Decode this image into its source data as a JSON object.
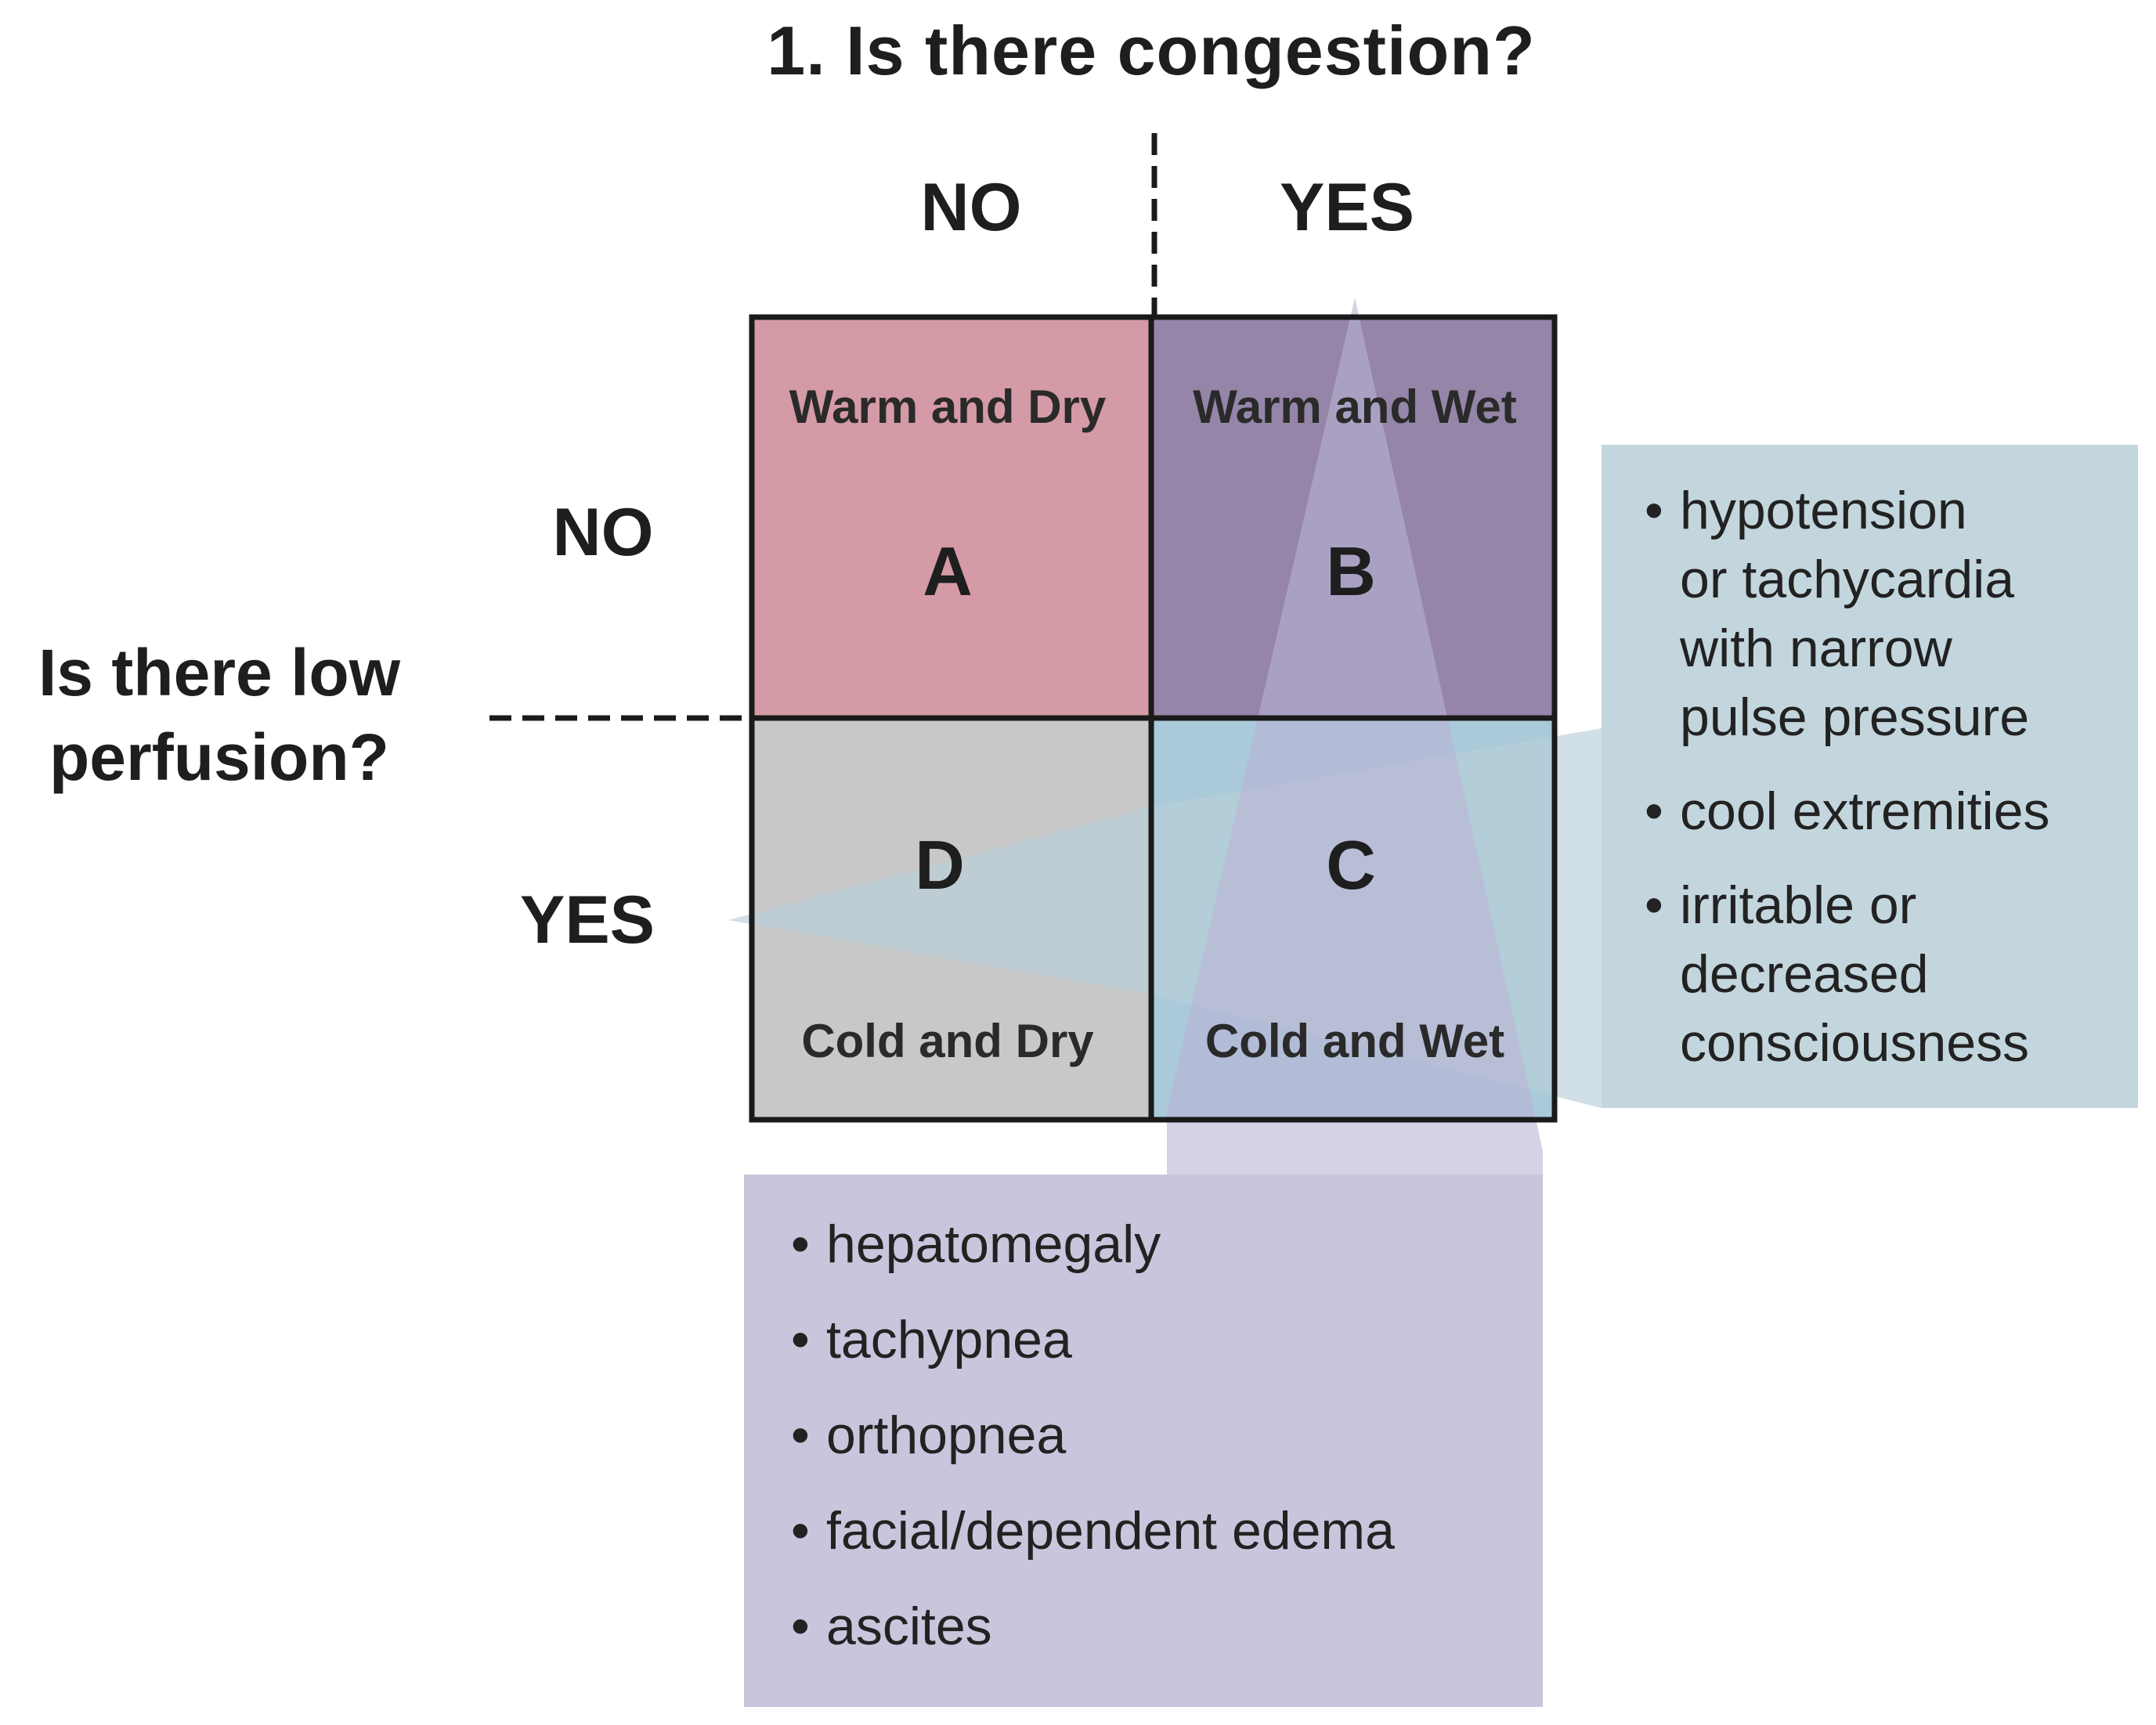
{
  "title": "1. Is there congestion?",
  "column_labels": {
    "no": "NO",
    "yes": "YES"
  },
  "row_labels": {
    "no": "NO",
    "yes": "YES"
  },
  "side_question": [
    "Is there low",
    "perfusion?"
  ],
  "cells": {
    "a": {
      "letter": "A",
      "label": "Warm and Dry",
      "color": "#d49aa6"
    },
    "b": {
      "letter": "B",
      "label": "Warm and Wet",
      "color": "#9585a8"
    },
    "c": {
      "letter": "C",
      "label": "Cold and Wet",
      "color": "#aac9d9"
    },
    "d": {
      "letter": "D",
      "label": "Cold and Dry",
      "color": "#c8c8c8"
    }
  },
  "perfusion_signs": [
    [
      "hypotension",
      "or tachycardia",
      "with narrow",
      "pulse pressure"
    ],
    [
      "cool extremities"
    ],
    [
      "irritable or",
      "decreased",
      "consciousness"
    ]
  ],
  "congestion_signs": [
    "hepatomegaly",
    "tachypnea",
    "orthopnea",
    "facial/dependent edema",
    "ascites"
  ],
  "colors": {
    "perfusion_callout": "#c3d6dd",
    "congestion_callout": "#c8c6dc",
    "border": "#1a1a1a"
  }
}
